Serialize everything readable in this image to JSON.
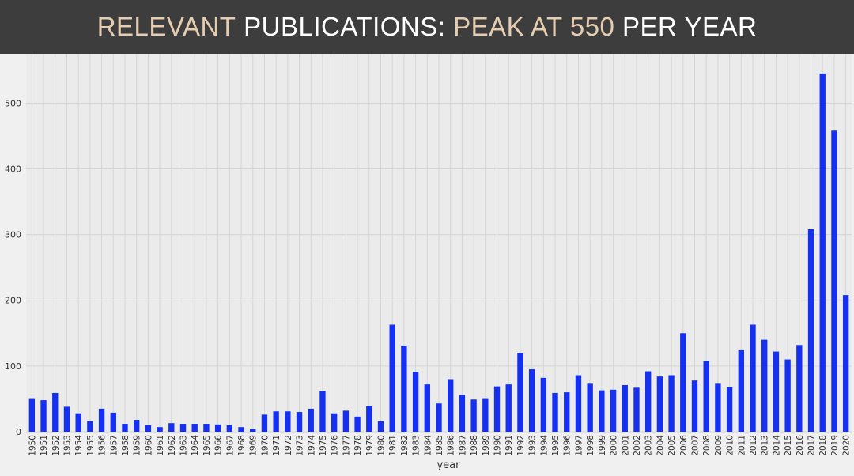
{
  "title": {
    "accent_1": "RELEVANT",
    "white_1": "PUBLICATIONS:",
    "accent_2": "PEAK AT 550",
    "white_2": "PER YEAR"
  },
  "colors": {
    "bar": "#1530f0",
    "title_accent": "#e6cdb0",
    "title_bg": "#3d3d3d",
    "plot_bg": "#ebebeb",
    "grid": "#d6d6d6"
  },
  "chart_data": {
    "type": "bar",
    "title": "RELEVANT PUBLICATIONS: PEAK AT 550 PER YEAR",
    "xlabel": "year",
    "ylabel": "",
    "ylim": [
      0,
      550
    ],
    "yticks": [
      0,
      100,
      200,
      300,
      400,
      500
    ],
    "grid": true,
    "legend": "none",
    "categories": [
      "1950",
      "1951",
      "1952",
      "1953",
      "1954",
      "1955",
      "1956",
      "1957",
      "1958",
      "1959",
      "1960",
      "1961",
      "1962",
      "1963",
      "1964",
      "1965",
      "1966",
      "1967",
      "1968",
      "1969",
      "1970",
      "1971",
      "1972",
      "1973",
      "1974",
      "1975",
      "1976",
      "1977",
      "1978",
      "1979",
      "1980",
      "1981",
      "1982",
      "1983",
      "1984",
      "1985",
      "1986",
      "1987",
      "1988",
      "1989",
      "1990",
      "1991",
      "1992",
      "1993",
      "1994",
      "1995",
      "1996",
      "1997",
      "1998",
      "1999",
      "2000",
      "2001",
      "2002",
      "2003",
      "2004",
      "2005",
      "2006",
      "2007",
      "2008",
      "2009",
      "2010",
      "2011",
      "2012",
      "2013",
      "2014",
      "2015",
      "2016",
      "2017",
      "2018",
      "2019",
      "2020"
    ],
    "values": [
      51,
      48,
      59,
      38,
      28,
      16,
      35,
      29,
      12,
      18,
      10,
      7,
      13,
      12,
      12,
      12,
      11,
      10,
      7,
      4,
      26,
      31,
      31,
      30,
      35,
      62,
      28,
      32,
      23,
      39,
      16,
      163,
      131,
      91,
      72,
      43,
      80,
      56,
      49,
      51,
      69,
      72,
      120,
      95,
      82,
      59,
      60,
      86,
      73,
      63,
      64,
      71,
      67,
      92,
      84,
      86,
      150,
      78,
      108,
      73,
      68,
      124,
      163,
      140,
      122,
      110,
      132,
      308,
      545,
      458,
      208
    ]
  }
}
